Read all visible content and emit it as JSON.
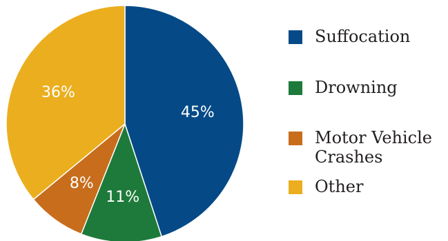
{
  "chart_data": {
    "type": "pie",
    "title": "",
    "start_angle_deg": 0,
    "direction": "clockwise",
    "slices": [
      {
        "label": "Suffocation",
        "value": 45,
        "display": "45%",
        "color": "#054a87"
      },
      {
        "label": "Drowning",
        "value": 11,
        "display": "11%",
        "color": "#1e7a3a"
      },
      {
        "label": "Motor Vehicle Crashes",
        "value": 8,
        "display": "8%",
        "color": "#c86d1c"
      },
      {
        "label": "Other",
        "value": 36,
        "display": "36%",
        "color": "#ebae1e"
      }
    ],
    "legend": {
      "position": "right",
      "entries": [
        {
          "lines": [
            "Suffocation"
          ],
          "color": "#054a87"
        },
        {
          "lines": [
            "Drowning"
          ],
          "color": "#1e7a3a"
        },
        {
          "lines": [
            "Motor Vehicle",
            "Crashes"
          ],
          "color": "#c86d1c"
        },
        {
          "lines": [
            "Other"
          ],
          "color": "#ebae1e"
        }
      ]
    }
  }
}
